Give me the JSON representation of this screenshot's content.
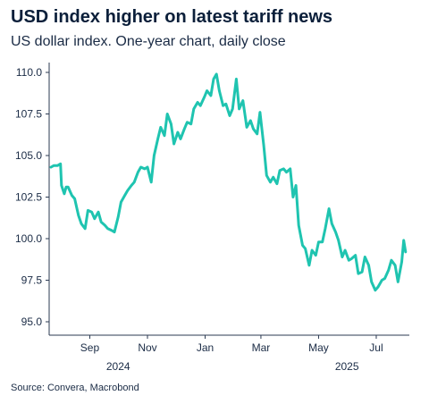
{
  "chart_data": {
    "type": "line",
    "title": "USD index higher on latest tariff news",
    "subtitle": "US dollar index. One-year chart, daily close",
    "source": "Source: Convera, Macrobond",
    "ylim": [
      95.0,
      110.0
    ],
    "yticks": [
      "110.0",
      "107.5",
      "105.0",
      "102.5",
      "100.0",
      "97.5",
      "95.0"
    ],
    "ytick_values": [
      110.0,
      107.5,
      105.0,
      102.5,
      100.0,
      97.5,
      95.0
    ],
    "xlim": [
      "2024-07-20",
      "2025-08-05"
    ],
    "xticks": [
      {
        "label": "Sep",
        "date": "2024-09-01"
      },
      {
        "label": "Nov",
        "date": "2024-11-01"
      },
      {
        "label": "Jan",
        "date": "2025-01-01"
      },
      {
        "label": "Mar",
        "date": "2025-03-01"
      },
      {
        "label": "May",
        "date": "2025-05-01"
      },
      {
        "label": "Jul",
        "date": "2025-07-01"
      }
    ],
    "year_labels": [
      {
        "label": "2024",
        "date": "2024-10-01"
      },
      {
        "label": "2025",
        "date": "2025-05-31"
      }
    ],
    "grid": false,
    "color": "#1fc4b0",
    "series": [
      {
        "points": [
          [
            "2024-07-22",
            104.3
          ],
          [
            "2024-07-25",
            104.4
          ],
          [
            "2024-07-29",
            104.4
          ],
          [
            "2024-08-01",
            104.5
          ],
          [
            "2024-08-02",
            103.2
          ],
          [
            "2024-08-05",
            102.7
          ],
          [
            "2024-08-07",
            103.1
          ],
          [
            "2024-08-09",
            103.1
          ],
          [
            "2024-08-13",
            102.6
          ],
          [
            "2024-08-16",
            102.4
          ],
          [
            "2024-08-20",
            101.4
          ],
          [
            "2024-08-23",
            100.9
          ],
          [
            "2024-08-27",
            100.6
          ],
          [
            "2024-08-30",
            101.7
          ],
          [
            "2024-09-03",
            101.6
          ],
          [
            "2024-09-06",
            101.2
          ],
          [
            "2024-09-10",
            101.6
          ],
          [
            "2024-09-13",
            101.0
          ],
          [
            "2024-09-17",
            100.8
          ],
          [
            "2024-09-20",
            100.6
          ],
          [
            "2024-09-24",
            100.5
          ],
          [
            "2024-09-27",
            100.4
          ],
          [
            "2024-10-01",
            101.3
          ],
          [
            "2024-10-04",
            102.2
          ],
          [
            "2024-10-08",
            102.6
          ],
          [
            "2024-10-11",
            102.9
          ],
          [
            "2024-10-15",
            103.2
          ],
          [
            "2024-10-18",
            103.4
          ],
          [
            "2024-10-22",
            104.0
          ],
          [
            "2024-10-25",
            104.3
          ],
          [
            "2024-10-29",
            104.2
          ],
          [
            "2024-11-01",
            104.3
          ],
          [
            "2024-11-05",
            103.4
          ],
          [
            "2024-11-08",
            105.0
          ],
          [
            "2024-11-12",
            106.0
          ],
          [
            "2024-11-15",
            106.7
          ],
          [
            "2024-11-19",
            106.2
          ],
          [
            "2024-11-22",
            107.5
          ],
          [
            "2024-11-26",
            106.9
          ],
          [
            "2024-11-29",
            105.7
          ],
          [
            "2024-12-03",
            106.4
          ],
          [
            "2024-12-06",
            106.0
          ],
          [
            "2024-12-10",
            106.6
          ],
          [
            "2024-12-13",
            107.0
          ],
          [
            "2024-12-17",
            106.9
          ],
          [
            "2024-12-20",
            107.8
          ],
          [
            "2024-12-24",
            108.2
          ],
          [
            "2024-12-27",
            108.0
          ],
          [
            "2024-12-31",
            108.5
          ],
          [
            "2025-01-03",
            108.9
          ],
          [
            "2025-01-07",
            108.6
          ],
          [
            "2025-01-10",
            109.6
          ],
          [
            "2025-01-13",
            109.9
          ],
          [
            "2025-01-16",
            108.9
          ],
          [
            "2025-01-20",
            108.0
          ],
          [
            "2025-01-23",
            108.1
          ],
          [
            "2025-01-27",
            107.4
          ],
          [
            "2025-01-30",
            107.8
          ],
          [
            "2025-02-03",
            109.6
          ],
          [
            "2025-02-06",
            107.8
          ],
          [
            "2025-02-10",
            108.3
          ],
          [
            "2025-02-14",
            106.7
          ],
          [
            "2025-02-18",
            107.1
          ],
          [
            "2025-02-21",
            106.6
          ],
          [
            "2025-02-25",
            106.3
          ],
          [
            "2025-02-28",
            107.6
          ],
          [
            "2025-03-04",
            105.6
          ],
          [
            "2025-03-07",
            103.8
          ],
          [
            "2025-03-11",
            103.4
          ],
          [
            "2025-03-14",
            103.7
          ],
          [
            "2025-03-18",
            103.3
          ],
          [
            "2025-03-21",
            104.1
          ],
          [
            "2025-03-25",
            104.2
          ],
          [
            "2025-03-28",
            104.0
          ],
          [
            "2025-04-01",
            104.2
          ],
          [
            "2025-04-04",
            102.5
          ],
          [
            "2025-04-07",
            103.2
          ],
          [
            "2025-04-10",
            100.8
          ],
          [
            "2025-04-14",
            99.6
          ],
          [
            "2025-04-17",
            99.4
          ],
          [
            "2025-04-21",
            98.4
          ],
          [
            "2025-04-24",
            99.3
          ],
          [
            "2025-04-28",
            99.0
          ],
          [
            "2025-05-01",
            99.8
          ],
          [
            "2025-05-05",
            99.8
          ],
          [
            "2025-05-08",
            100.6
          ],
          [
            "2025-05-12",
            101.8
          ],
          [
            "2025-05-15",
            100.9
          ],
          [
            "2025-05-19",
            100.4
          ],
          [
            "2025-05-22",
            99.9
          ],
          [
            "2025-05-26",
            98.9
          ],
          [
            "2025-05-29",
            99.3
          ],
          [
            "2025-06-02",
            98.7
          ],
          [
            "2025-06-05",
            98.8
          ],
          [
            "2025-06-09",
            99.0
          ],
          [
            "2025-06-12",
            97.9
          ],
          [
            "2025-06-16",
            98.0
          ],
          [
            "2025-06-19",
            98.9
          ],
          [
            "2025-06-23",
            98.4
          ],
          [
            "2025-06-26",
            97.4
          ],
          [
            "2025-06-30",
            96.9
          ],
          [
            "2025-07-03",
            97.1
          ],
          [
            "2025-07-07",
            97.5
          ],
          [
            "2025-07-10",
            97.6
          ],
          [
            "2025-07-14",
            98.1
          ],
          [
            "2025-07-17",
            98.7
          ],
          [
            "2025-07-21",
            98.4
          ],
          [
            "2025-07-24",
            97.4
          ],
          [
            "2025-07-28",
            98.6
          ],
          [
            "2025-07-30",
            99.9
          ],
          [
            "2025-08-01",
            99.2
          ]
        ]
      }
    ]
  }
}
